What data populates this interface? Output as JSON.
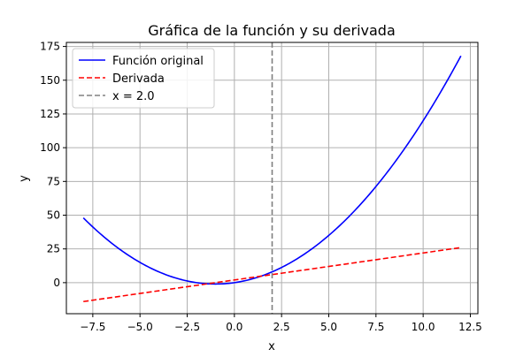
{
  "chart_data": {
    "type": "line",
    "title": "Gráfica de la función y su derivada",
    "xlabel": "x",
    "ylabel": "y",
    "xlim": [
      -8.9,
      12.9
    ],
    "ylim": [
      -23,
      178
    ],
    "xticks": [
      -7.5,
      -5.0,
      -2.5,
      0.0,
      2.5,
      5.0,
      7.5,
      10.0,
      12.5
    ],
    "xtick_labels": [
      "−7.5",
      "−5.0",
      "−2.5",
      "0.0",
      "2.5",
      "5.0",
      "7.5",
      "10.0",
      "12.5"
    ],
    "yticks": [
      0,
      25,
      50,
      75,
      100,
      125,
      150,
      175
    ],
    "ytick_labels": [
      "0",
      "25",
      "50",
      "75",
      "100",
      "125",
      "150",
      "175"
    ],
    "grid": true,
    "legend_position": "top-left",
    "series": [
      {
        "name": "Función original",
        "color": "#0000ff",
        "style": "solid",
        "x": [
          -8,
          -7,
          -6,
          -5,
          -4,
          -3,
          -2,
          -1,
          0,
          1,
          2,
          3,
          4,
          5,
          6,
          7,
          8,
          9,
          10,
          11,
          12
        ],
        "y": [
          48,
          35,
          24,
          15,
          8,
          3,
          0,
          -1,
          0,
          3,
          8,
          15,
          24,
          35,
          48,
          63,
          80,
          99,
          120,
          143,
          168
        ]
      },
      {
        "name": "Derivada",
        "color": "#ff0000",
        "style": "dashed",
        "x": [
          -8,
          12
        ],
        "y": [
          -14,
          26
        ]
      }
    ],
    "vlines": [
      {
        "name": "x = 2.0",
        "x": 2.0,
        "color": "#808080",
        "style": "dashed"
      }
    ]
  }
}
